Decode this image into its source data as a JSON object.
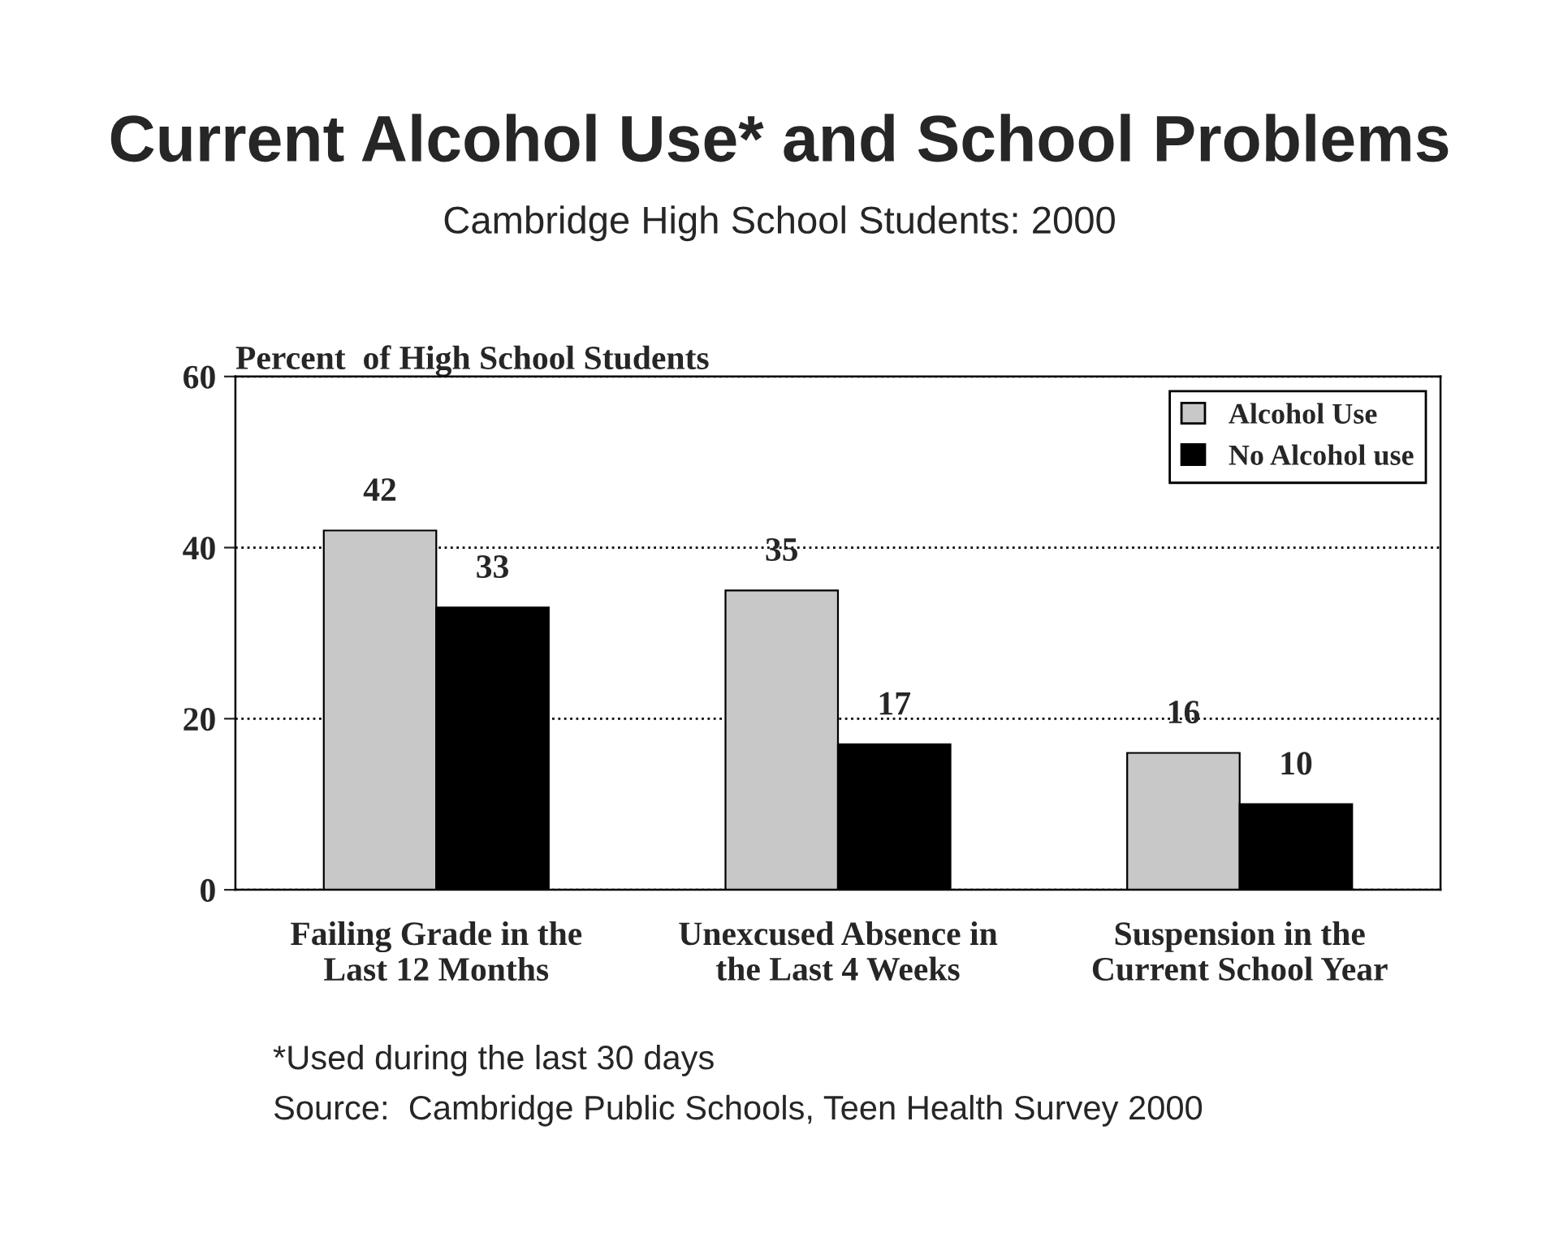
{
  "chart_data": {
    "type": "bar",
    "title": "Current Alcohol Use* and School Problems",
    "subtitle": "Cambridge High School Students: 2000",
    "ylabel": "Percent  of High School Students",
    "categories": [
      "Failing Grade in the\nLast 12 Months",
      "Unexcused Absence in\nthe Last 4 Weeks",
      "Suspension in the\nCurrent School Year"
    ],
    "series": [
      {
        "name": "Alcohol Use",
        "color": "#c8c8c8",
        "values": [
          42,
          35,
          16
        ]
      },
      {
        "name": "No Alcohol use",
        "color": "#000000",
        "values": [
          33,
          17,
          10
        ]
      }
    ],
    "ylim": [
      0,
      60
    ],
    "yticks": [
      0,
      20,
      40,
      60
    ],
    "grid": "y",
    "legend": "top right",
    "data_labels": true,
    "annotations": [
      "*Used during the last 30 days",
      "Source:  Cambridge Public Schools, Teen Health Survey 2000"
    ]
  }
}
